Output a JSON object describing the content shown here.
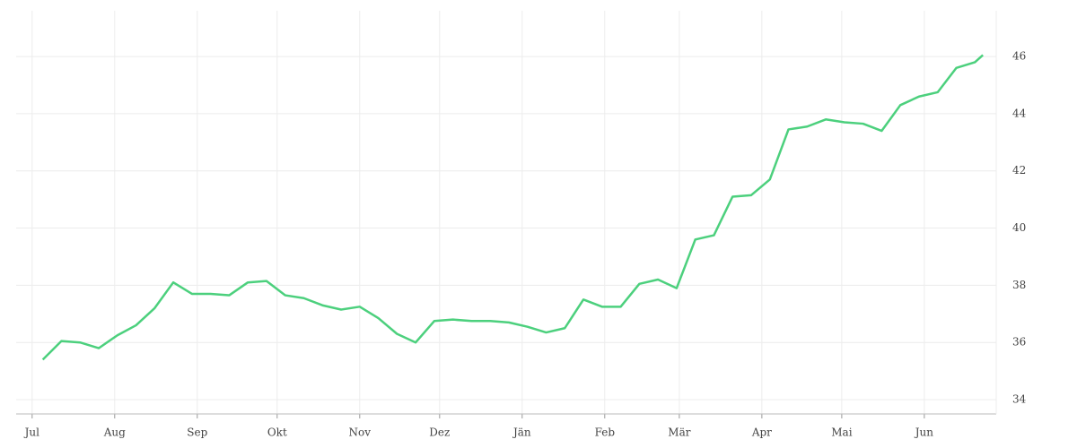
{
  "chart_data": {
    "type": "line",
    "x": [
      4,
      11,
      18,
      25,
      32,
      39,
      46,
      53,
      60,
      67,
      74,
      81,
      88,
      95,
      102,
      109,
      116,
      123,
      130,
      137,
      144,
      151,
      158,
      165,
      172,
      179,
      186,
      193,
      200,
      207,
      214,
      221,
      228,
      235,
      242,
      249,
      256,
      263,
      270,
      277,
      284,
      291,
      298,
      305,
      312,
      319,
      326,
      333,
      340,
      347,
      354,
      357
    ],
    "series": [
      {
        "color": "#4cd07d",
        "values": [
          35.4,
          36.05,
          36.0,
          35.8,
          36.25,
          36.6,
          37.2,
          38.1,
          37.7,
          37.7,
          37.65,
          38.1,
          38.15,
          37.65,
          37.55,
          37.3,
          37.15,
          37.25,
          36.85,
          36.3,
          36.0,
          36.75,
          36.8,
          36.75,
          36.75,
          36.7,
          36.55,
          36.35,
          36.5,
          37.5,
          37.25,
          37.25,
          38.05,
          38.2,
          37.9,
          39.6,
          39.75,
          41.1,
          41.15,
          41.7,
          43.45,
          43.55,
          43.8,
          43.7,
          43.65,
          43.4,
          44.3,
          44.6,
          44.75,
          45.6,
          45.8,
          46.05
        ]
      }
    ],
    "xlim": [
      -6,
      362
    ],
    "xticks": [
      {
        "value": 0,
        "label": "Jul"
      },
      {
        "value": 31,
        "label": "Aug"
      },
      {
        "value": 62,
        "label": "Sep"
      },
      {
        "value": 92,
        "label": "Okt"
      },
      {
        "value": 123,
        "label": "Nov"
      },
      {
        "value": 153,
        "label": "Dez"
      },
      {
        "value": 184,
        "label": "Jän"
      },
      {
        "value": 215,
        "label": "Feb"
      },
      {
        "value": 243,
        "label": "Mär"
      },
      {
        "value": 274,
        "label": "Apr"
      },
      {
        "value": 304,
        "label": "Mai"
      },
      {
        "value": 335,
        "label": "Jun"
      }
    ],
    "ylim": [
      33.5,
      47.6
    ],
    "yticks": [
      34,
      36,
      38,
      40,
      42,
      44,
      46
    ],
    "grid": true
  }
}
